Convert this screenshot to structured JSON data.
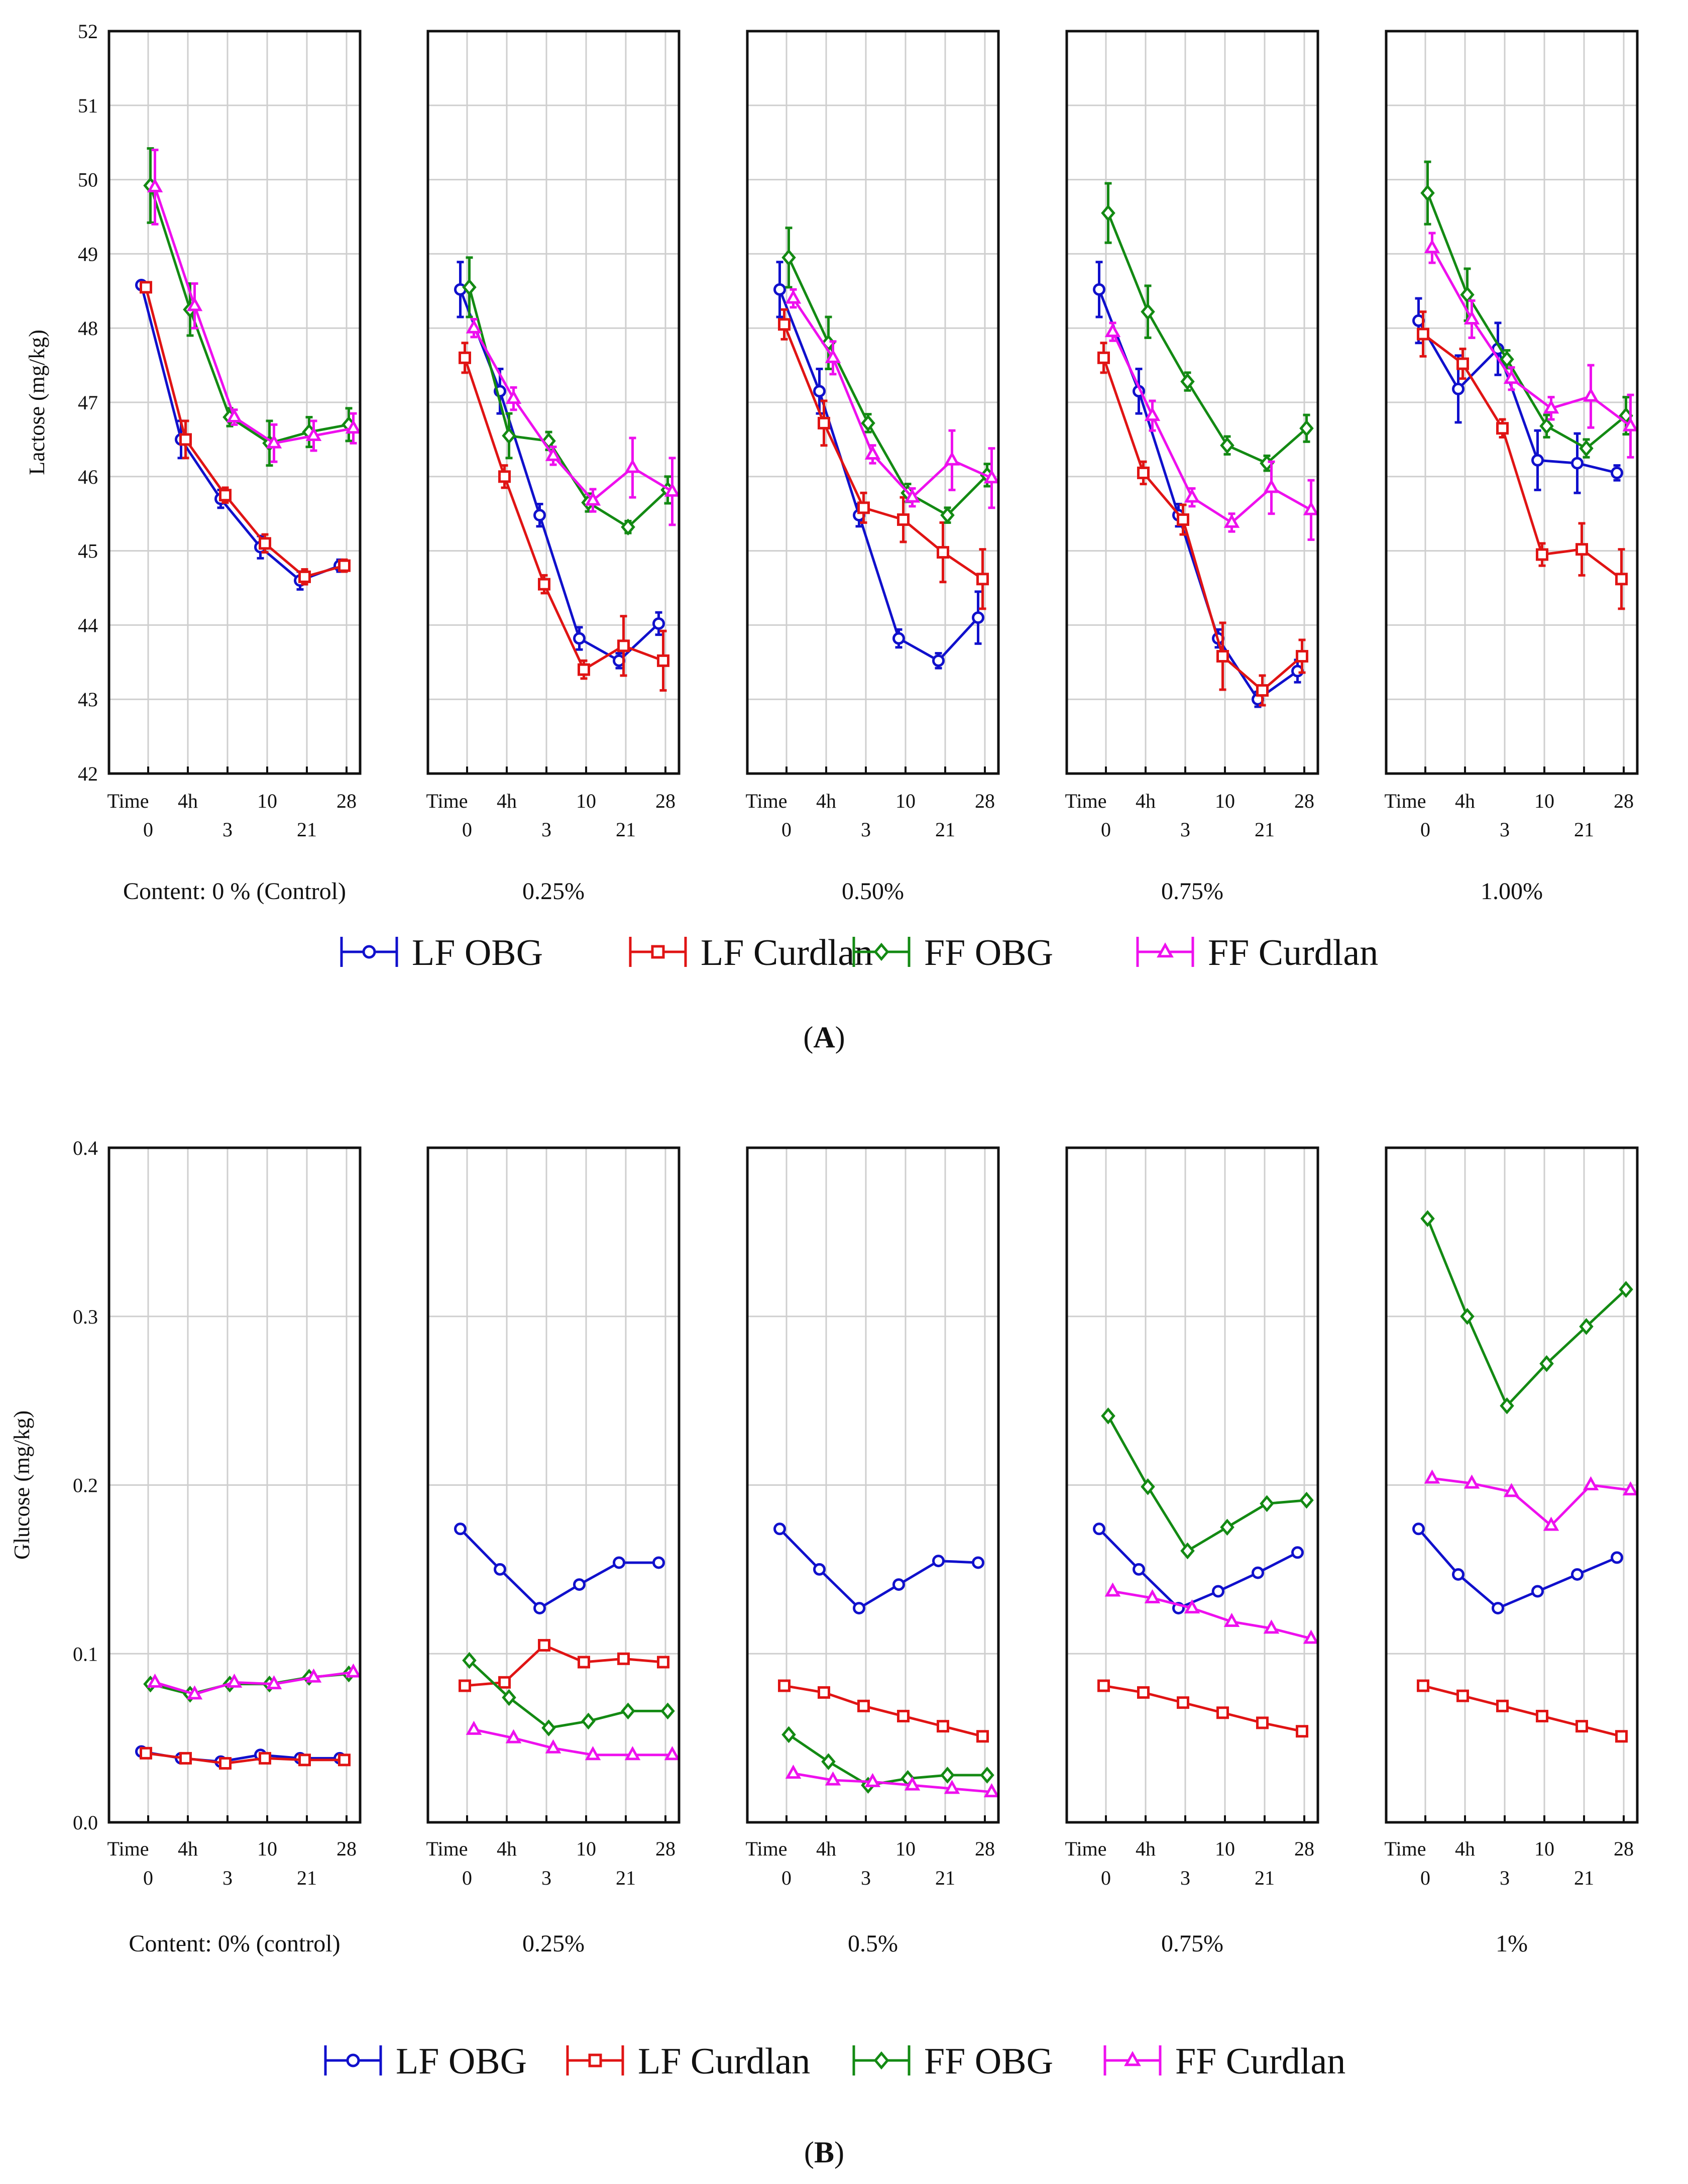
{
  "figure": {
    "x_ticks_row1": [
      "Time",
      "4h",
      "10",
      "28"
    ],
    "x_ticks_row2": [
      "0",
      "3",
      "21"
    ],
    "legend": [
      {
        "name": "LF OBG",
        "color": "#1010cc",
        "marker": "circle"
      },
      {
        "name": "LF Curdlan",
        "color": "#e01414",
        "marker": "square"
      },
      {
        "name": "FF OBG",
        "color": "#138a13",
        "marker": "diamond"
      },
      {
        "name": "FF Curdlan",
        "color": "#ee10ee",
        "marker": "triangle"
      }
    ]
  },
  "chart_data": [
    {
      "type": "line",
      "panel_label": "(A)",
      "panel_letter": "A",
      "ylabel": "Lactose (mg/kg)",
      "ylim": [
        42,
        52
      ],
      "yticks": [
        "42",
        "43",
        "44",
        "45",
        "46",
        "47",
        "48",
        "49",
        "50",
        "51",
        "52"
      ],
      "x_positions": [
        0,
        1,
        2,
        3,
        4,
        5
      ],
      "x_categories": [
        "0",
        "4h",
        "3",
        "10",
        "21",
        "28"
      ],
      "grid": true,
      "subplots": [
        {
          "content_label": "Content: 0 % (Control)",
          "series": [
            {
              "name": "LF OBG",
              "values": [
                48.58,
                46.5,
                45.7,
                45.05,
                44.6,
                44.8
              ],
              "error": [
                0.05,
                0.25,
                0.12,
                0.15,
                0.12,
                0.08
              ]
            },
            {
              "name": "LF Curdlan",
              "values": [
                48.55,
                46.5,
                45.75,
                45.1,
                44.65,
                44.8
              ],
              "error": [
                0.05,
                0.25,
                0.1,
                0.12,
                0.1,
                0.08
              ]
            },
            {
              "name": "FF OBG",
              "values": [
                49.92,
                48.25,
                46.8,
                46.45,
                46.6,
                46.7
              ],
              "error": [
                0.5,
                0.35,
                0.12,
                0.3,
                0.2,
                0.22
              ]
            },
            {
              "name": "FF Curdlan",
              "values": [
                49.9,
                48.3,
                46.8,
                46.45,
                46.55,
                46.65
              ],
              "error": [
                0.5,
                0.3,
                0.1,
                0.25,
                0.2,
                0.2
              ]
            }
          ]
        },
        {
          "content_label": "0.25%",
          "series": [
            {
              "name": "LF OBG",
              "values": [
                48.52,
                47.15,
                45.48,
                43.82,
                43.52,
                44.02
              ],
              "error": [
                0.37,
                0.3,
                0.15,
                0.15,
                0.1,
                0.15
              ]
            },
            {
              "name": "LF Curdlan",
              "values": [
                47.6,
                46.0,
                44.55,
                43.4,
                43.72,
                43.52
              ],
              "error": [
                0.2,
                0.15,
                0.12,
                0.12,
                0.4,
                0.4
              ]
            },
            {
              "name": "FF OBG",
              "values": [
                48.55,
                46.55,
                46.48,
                45.65,
                45.32,
                45.82
              ],
              "error": [
                0.4,
                0.3,
                0.12,
                0.12,
                0.08,
                0.18
              ]
            },
            {
              "name": "FF Curdlan",
              "values": [
                48.0,
                47.05,
                46.28,
                45.68,
                46.12,
                45.8
              ],
              "error": [
                0.12,
                0.15,
                0.12,
                0.15,
                0.4,
                0.45
              ]
            }
          ]
        },
        {
          "content_label": "0.50%",
          "series": [
            {
              "name": "LF OBG",
              "values": [
                48.52,
                47.15,
                45.48,
                43.82,
                43.52,
                44.1
              ],
              "error": [
                0.37,
                0.3,
                0.15,
                0.12,
                0.1,
                0.35
              ]
            },
            {
              "name": "LF Curdlan",
              "values": [
                48.05,
                46.72,
                45.58,
                45.42,
                44.98,
                44.62
              ],
              "error": [
                0.2,
                0.3,
                0.2,
                0.3,
                0.4,
                0.4
              ]
            },
            {
              "name": "FF OBG",
              "values": [
                48.95,
                47.8,
                46.72,
                45.78,
                45.48,
                46.02
              ],
              "error": [
                0.4,
                0.35,
                0.12,
                0.12,
                0.1,
                0.15
              ]
            },
            {
              "name": "FF Curdlan",
              "values": [
                48.4,
                47.6,
                46.3,
                45.72,
                46.22,
                45.98
              ],
              "error": [
                0.12,
                0.22,
                0.12,
                0.12,
                0.4,
                0.4
              ]
            }
          ]
        },
        {
          "content_label": "0.75%",
          "series": [
            {
              "name": "LF OBG",
              "values": [
                48.52,
                47.15,
                45.48,
                43.82,
                43.0,
                43.38
              ],
              "error": [
                0.37,
                0.3,
                0.15,
                0.12,
                0.1,
                0.15
              ]
            },
            {
              "name": "LF Curdlan",
              "values": [
                47.6,
                46.05,
                45.42,
                43.58,
                43.12,
                43.58
              ],
              "error": [
                0.2,
                0.15,
                0.2,
                0.45,
                0.2,
                0.22
              ]
            },
            {
              "name": "FF OBG",
              "values": [
                49.55,
                48.22,
                47.28,
                46.42,
                46.18,
                46.65
              ],
              "error": [
                0.4,
                0.35,
                0.12,
                0.12,
                0.1,
                0.18
              ]
            },
            {
              "name": "FF Curdlan",
              "values": [
                47.95,
                46.82,
                45.72,
                45.38,
                45.85,
                45.55
              ],
              "error": [
                0.12,
                0.2,
                0.12,
                0.12,
                0.35,
                0.4
              ]
            }
          ]
        },
        {
          "content_label": "1.00%",
          "series": [
            {
              "name": "LF OBG",
              "values": [
                48.1,
                47.18,
                47.72,
                46.22,
                46.18,
                46.05
              ],
              "error": [
                0.3,
                0.45,
                0.35,
                0.4,
                0.4,
                0.1
              ]
            },
            {
              "name": "LF Curdlan",
              "values": [
                47.92,
                47.52,
                46.65,
                44.95,
                45.02,
                44.62
              ],
              "error": [
                0.3,
                0.2,
                0.12,
                0.15,
                0.35,
                0.4
              ]
            },
            {
              "name": "FF OBG",
              "values": [
                49.82,
                48.45,
                47.58,
                46.68,
                46.38,
                46.82
              ],
              "error": [
                0.42,
                0.35,
                0.12,
                0.15,
                0.12,
                0.25
              ]
            },
            {
              "name": "FF Curdlan",
              "values": [
                49.08,
                48.12,
                47.32,
                46.92,
                47.08,
                46.68
              ],
              "error": [
                0.2,
                0.25,
                0.15,
                0.15,
                0.42,
                0.42
              ]
            }
          ]
        }
      ]
    },
    {
      "type": "line",
      "panel_label": "(B)",
      "panel_letter": "B",
      "ylabel": "Glucose (mg/kg)",
      "ylim": [
        0.0,
        0.4
      ],
      "yticks": [
        "0.0",
        "0.1",
        "0.2",
        "0.3",
        "0.4"
      ],
      "x_positions": [
        0,
        1,
        2,
        3,
        4,
        5
      ],
      "x_categories": [
        "0",
        "4h",
        "3",
        "10",
        "21",
        "28"
      ],
      "grid": true,
      "subplots": [
        {
          "content_label": "Content: 0% (control)",
          "series": [
            {
              "name": "LF OBG",
              "values": [
                0.042,
                0.038,
                0.036,
                0.04,
                0.038,
                0.038
              ]
            },
            {
              "name": "LF Curdlan",
              "values": [
                0.041,
                0.038,
                0.035,
                0.038,
                0.037,
                0.037
              ]
            },
            {
              "name": "FF OBG",
              "values": [
                0.082,
                0.076,
                0.082,
                0.082,
                0.086,
                0.088
              ]
            },
            {
              "name": "FF Curdlan",
              "values": [
                0.083,
                0.076,
                0.083,
                0.082,
                0.086,
                0.089
              ]
            }
          ]
        },
        {
          "content_label": "0.25%",
          "series": [
            {
              "name": "LF OBG",
              "values": [
                0.174,
                0.15,
                0.127,
                0.141,
                0.154,
                0.154
              ]
            },
            {
              "name": "LF Curdlan",
              "values": [
                0.081,
                0.083,
                0.105,
                0.095,
                0.097,
                0.095
              ]
            },
            {
              "name": "FF OBG",
              "values": [
                0.096,
                0.074,
                0.056,
                0.06,
                0.066,
                0.066
              ]
            },
            {
              "name": "FF Curdlan",
              "values": [
                0.055,
                0.05,
                0.044,
                0.04,
                0.04,
                0.04
              ]
            }
          ]
        },
        {
          "content_label": "0.5%",
          "series": [
            {
              "name": "LF OBG",
              "values": [
                0.174,
                0.15,
                0.127,
                0.141,
                0.155,
                0.154
              ]
            },
            {
              "name": "LF Curdlan",
              "values": [
                0.081,
                0.077,
                0.069,
                0.063,
                0.057,
                0.051
              ]
            },
            {
              "name": "FF OBG",
              "values": [
                0.052,
                0.036,
                0.022,
                0.026,
                0.028,
                0.028
              ]
            },
            {
              "name": "FF Curdlan",
              "values": [
                0.029,
                0.025,
                0.024,
                0.022,
                0.02,
                0.018
              ]
            }
          ]
        },
        {
          "content_label": "0.75%",
          "series": [
            {
              "name": "LF OBG",
              "values": [
                0.174,
                0.15,
                0.127,
                0.137,
                0.148,
                0.16
              ]
            },
            {
              "name": "LF Curdlan",
              "values": [
                0.081,
                0.077,
                0.071,
                0.065,
                0.059,
                0.054
              ]
            },
            {
              "name": "FF OBG",
              "values": [
                0.241,
                0.199,
                0.161,
                0.175,
                0.189,
                0.191
              ]
            },
            {
              "name": "FF Curdlan",
              "values": [
                0.137,
                0.133,
                0.127,
                0.119,
                0.115,
                0.109
              ]
            }
          ]
        },
        {
          "content_label": "1%",
          "series": [
            {
              "name": "LF OBG",
              "values": [
                0.174,
                0.147,
                0.127,
                0.137,
                0.147,
                0.157
              ]
            },
            {
              "name": "LF Curdlan",
              "values": [
                0.081,
                0.075,
                0.069,
                0.063,
                0.057,
                0.051
              ]
            },
            {
              "name": "FF OBG",
              "values": [
                0.358,
                0.3,
                0.247,
                0.272,
                0.294,
                0.316
              ]
            },
            {
              "name": "FF Curdlan",
              "values": [
                0.204,
                0.201,
                0.196,
                0.176,
                0.2,
                0.197
              ]
            }
          ]
        }
      ]
    }
  ]
}
